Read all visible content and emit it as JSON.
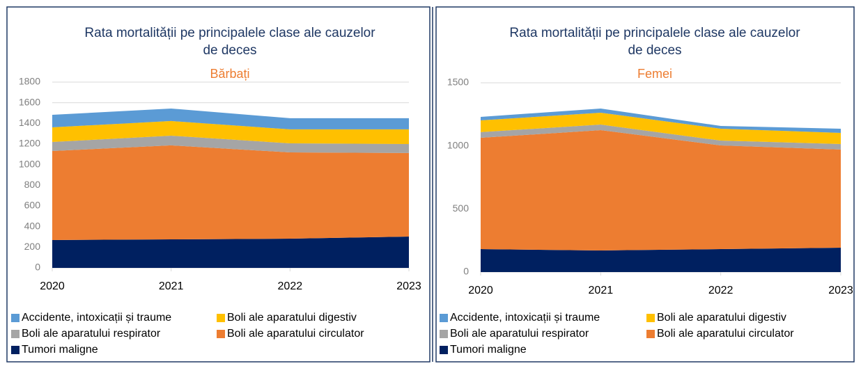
{
  "chart_data": [
    {
      "type": "area",
      "stacked": true,
      "title": "Rata mortalității pe principalele clase ale cauzelor de deces",
      "subtitle": "Bărbați",
      "categories": [
        "2020",
        "2021",
        "2022",
        "2023"
      ],
      "ylim": [
        0,
        1800
      ],
      "yticks": [
        0,
        200,
        400,
        600,
        800,
        1000,
        1200,
        1400,
        1600,
        1800
      ],
      "grid": true,
      "series": [
        {
          "name": "Tumori maligne",
          "color": "#002060",
          "values": [
            270,
            276,
            283,
            303
          ]
        },
        {
          "name": "Boli ale aparatului circulator",
          "color": "#ed7d31",
          "values": [
            863,
            911,
            836,
            810
          ]
        },
        {
          "name": "Boli ale aparatului respirator",
          "color": "#a5a5a5",
          "values": [
            87,
            94,
            88,
            87
          ]
        },
        {
          "name": "Boli ale aparatului digestiv",
          "color": "#ffc000",
          "values": [
            142,
            142,
            135,
            142
          ]
        },
        {
          "name": "Accidente, intoxicații și traume",
          "color": "#5b9bd5",
          "values": [
            121,
            121,
            108,
            108
          ]
        }
      ]
    },
    {
      "type": "area",
      "stacked": true,
      "title": "Rata mortalității pe principalele clase ale cauzelor de deces",
      "subtitle": "Femei",
      "categories": [
        "2020",
        "2021",
        "2022",
        "2023"
      ],
      "ylim": [
        0,
        1500
      ],
      "yticks": [
        0,
        500,
        1000,
        1500
      ],
      "grid": true,
      "series": [
        {
          "name": "Tumori maligne",
          "color": "#002060",
          "values": [
            182,
            171,
            182,
            193
          ]
        },
        {
          "name": "Boli ale aparatului circulator",
          "color": "#ed7d31",
          "values": [
            882,
            954,
            822,
            778
          ]
        },
        {
          "name": "Boli ale aparatului respirator",
          "color": "#a5a5a5",
          "values": [
            45,
            44,
            38,
            44
          ]
        },
        {
          "name": "Boli ale aparatului digestiv",
          "color": "#ffc000",
          "values": [
            93,
            94,
            94,
            88
          ]
        },
        {
          "name": "Accidente, intoxicații și traume",
          "color": "#5b9bd5",
          "values": [
            28,
            33,
            22,
            33
          ]
        }
      ]
    }
  ]
}
